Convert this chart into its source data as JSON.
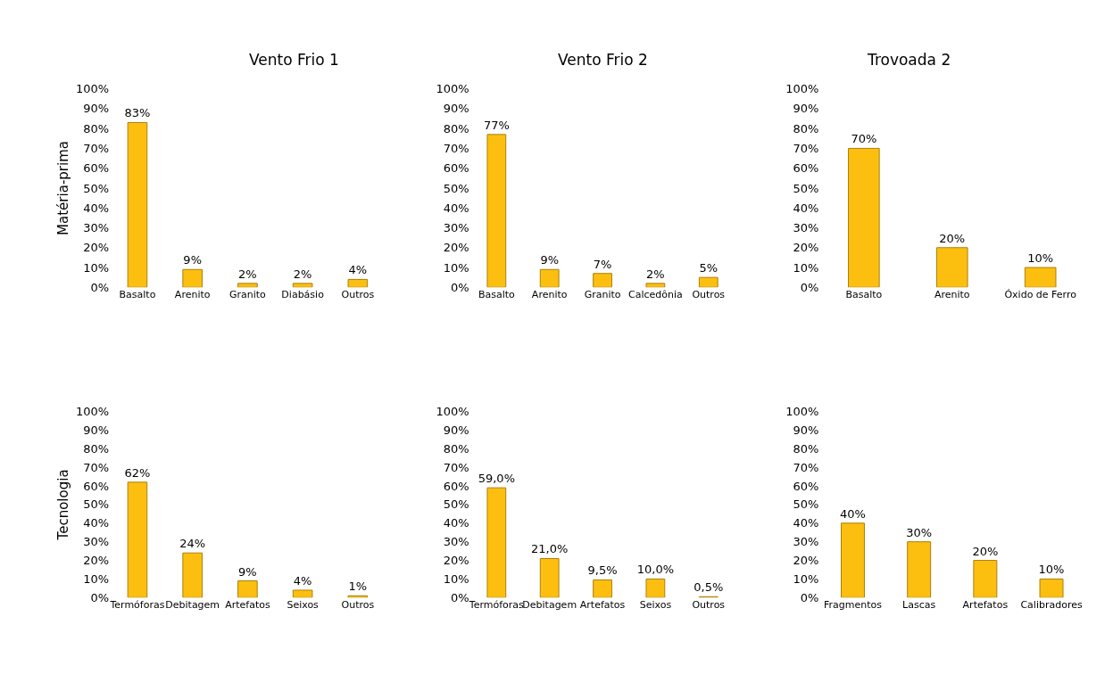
{
  "chart_data": [
    {
      "type": "bar",
      "title": "Vento Frio 1",
      "ylabel": "Matéria-prima",
      "categories": [
        "Basalto",
        "Arenito",
        "Granito",
        "Diabásio",
        "Outros"
      ],
      "values": [
        83,
        9,
        2,
        2,
        4
      ],
      "value_labels": [
        "83%",
        "9%",
        "2%",
        "2%",
        "4%"
      ],
      "color": "#fdbf0f",
      "ylim": [
        0,
        100
      ],
      "yticks": [
        {
          "value": 0,
          "label": "0%"
        },
        {
          "value": 10,
          "label": "10%"
        },
        {
          "value": 20,
          "label": "20%"
        },
        {
          "value": 30,
          "label": "30%"
        },
        {
          "value": 40,
          "label": "40%"
        },
        {
          "value": 50,
          "label": "50%"
        },
        {
          "value": 60,
          "label": "60%"
        },
        {
          "value": 70,
          "label": "70%"
        },
        {
          "value": 80,
          "label": "80%"
        },
        {
          "value": 90,
          "label": "90%"
        },
        {
          "value": 100,
          "label": "100%"
        }
      ]
    },
    {
      "type": "bar",
      "title": "Vento Frio 2",
      "categories": [
        "Basalto",
        "Arenito",
        "Granito",
        "Calcedônia",
        "Outros"
      ],
      "values": [
        77,
        9,
        7,
        2,
        5
      ],
      "value_labels": [
        "77%",
        "9%",
        "7%",
        "2%",
        "5%"
      ],
      "color": "#fdbf0f",
      "ylim": [
        0,
        100
      ],
      "yticks": [
        {
          "value": 0,
          "label": "0%"
        },
        {
          "value": 10,
          "label": "10%"
        },
        {
          "value": 20,
          "label": "20%"
        },
        {
          "value": 30,
          "label": "30%"
        },
        {
          "value": 40,
          "label": "40%"
        },
        {
          "value": 50,
          "label": "50%"
        },
        {
          "value": 60,
          "label": "60%"
        },
        {
          "value": 70,
          "label": "70%"
        },
        {
          "value": 80,
          "label": "80%"
        },
        {
          "value": 90,
          "label": "90%"
        },
        {
          "value": 100,
          "label": "100%"
        }
      ]
    },
    {
      "type": "bar",
      "title": "Trovoada 2",
      "categories": [
        "Basalto",
        "Arenito",
        "Óxido de Ferro"
      ],
      "values": [
        70,
        20,
        10
      ],
      "value_labels": [
        "70%",
        "20%",
        "10%"
      ],
      "color": "#fdbf0f",
      "ylim": [
        0,
        100
      ],
      "yticks": [
        {
          "value": 0,
          "label": "0%"
        },
        {
          "value": 10,
          "label": "10%"
        },
        {
          "value": 20,
          "label": "20%"
        },
        {
          "value": 30,
          "label": "30%"
        },
        {
          "value": 40,
          "label": "40%"
        },
        {
          "value": 50,
          "label": "50%"
        },
        {
          "value": 60,
          "label": "60%"
        },
        {
          "value": 70,
          "label": "70%"
        },
        {
          "value": 80,
          "label": "80%"
        },
        {
          "value": 90,
          "label": "90%"
        },
        {
          "value": 100,
          "label": "100%"
        }
      ]
    },
    {
      "type": "bar",
      "ylabel": "Tecnologia",
      "categories": [
        "Termóforas",
        "Debitagem",
        "Artefatos",
        "Seixos",
        "Outros"
      ],
      "values": [
        62,
        24,
        9,
        4,
        1
      ],
      "value_labels": [
        "62%",
        "24%",
        "9%",
        "4%",
        "1%"
      ],
      "color": "#fdbf0f",
      "ylim": [
        0,
        100
      ],
      "yticks": [
        {
          "value": 0,
          "label": "0%"
        },
        {
          "value": 10,
          "label": "10%"
        },
        {
          "value": 20,
          "label": "20%"
        },
        {
          "value": 30,
          "label": "30%"
        },
        {
          "value": 40,
          "label": "40%"
        },
        {
          "value": 50,
          "label": "50%"
        },
        {
          "value": 60,
          "label": "60%"
        },
        {
          "value": 70,
          "label": "70%"
        },
        {
          "value": 80,
          "label": "80%"
        },
        {
          "value": 90,
          "label": "90%"
        },
        {
          "value": 100,
          "label": "100%"
        }
      ]
    },
    {
      "type": "bar",
      "categories": [
        "Termóforas",
        "Debitagem",
        "Artefatos",
        "Seixos",
        "Outros"
      ],
      "values": [
        59.0,
        21.0,
        9.5,
        10.0,
        0.5
      ],
      "value_labels": [
        "59,0%",
        "21,0%",
        "9,5%",
        "10,0%",
        "0,5%"
      ],
      "color": "#fdbf0f",
      "ylim": [
        0,
        100
      ],
      "yticks": [
        {
          "value": 0,
          "label": "0%"
        },
        {
          "value": 10,
          "label": "10%"
        },
        {
          "value": 20,
          "label": "20%"
        },
        {
          "value": 30,
          "label": "30%"
        },
        {
          "value": 40,
          "label": "40%"
        },
        {
          "value": 50,
          "label": "50%"
        },
        {
          "value": 60,
          "label": "60%"
        },
        {
          "value": 70,
          "label": "70%"
        },
        {
          "value": 80,
          "label": "80%"
        },
        {
          "value": 90,
          "label": "90%"
        },
        {
          "value": 100,
          "label": "100%"
        }
      ]
    },
    {
      "type": "bar",
      "categories": [
        "Fragmentos",
        "Lascas",
        "Artefatos",
        "Calibradores"
      ],
      "values": [
        40,
        30,
        20,
        10
      ],
      "value_labels": [
        "40%",
        "30%",
        "20%",
        "10%"
      ],
      "color": "#fdbf0f",
      "ylim": [
        0,
        100
      ],
      "yticks": [
        {
          "value": 0,
          "label": "0%"
        },
        {
          "value": 10,
          "label": "10%"
        },
        {
          "value": 20,
          "label": "20%"
        },
        {
          "value": 30,
          "label": "30%"
        },
        {
          "value": 40,
          "label": "40%"
        },
        {
          "value": 50,
          "label": "50%"
        },
        {
          "value": 60,
          "label": "60%"
        },
        {
          "value": 70,
          "label": "70%"
        },
        {
          "value": 80,
          "label": "80%"
        },
        {
          "value": 90,
          "label": "90%"
        },
        {
          "value": 100,
          "label": "100%"
        }
      ]
    }
  ]
}
